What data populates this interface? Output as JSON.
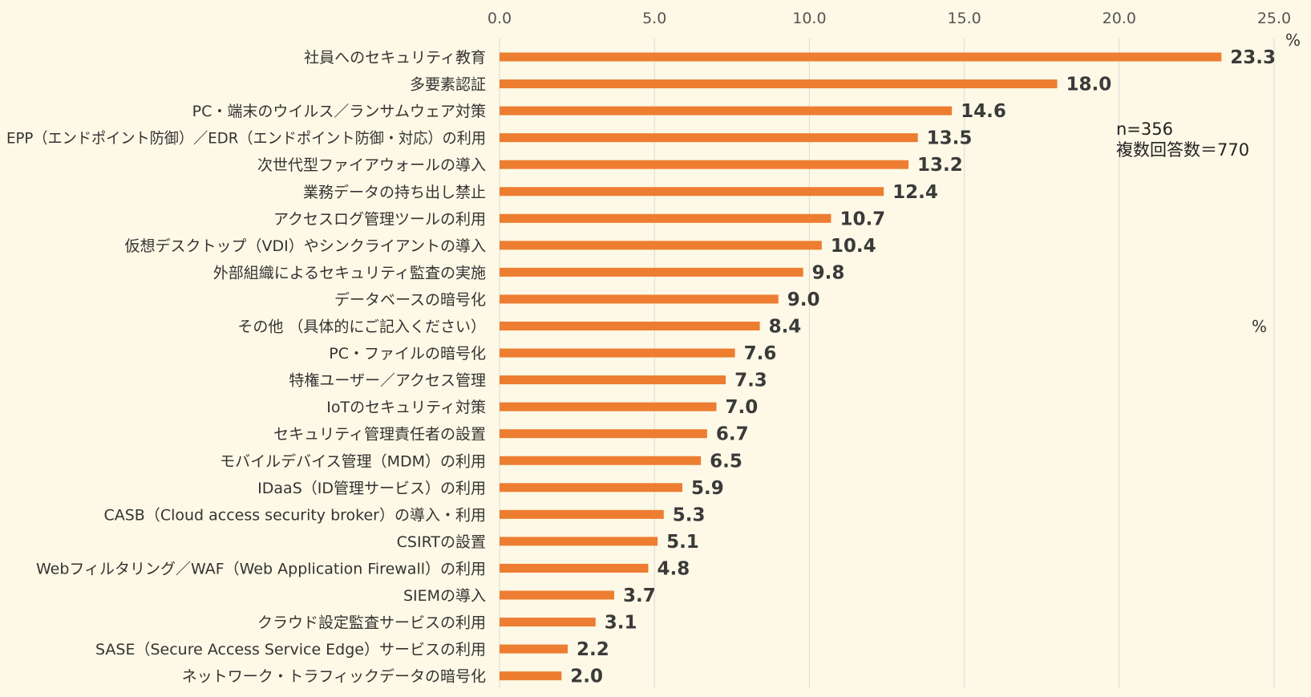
{
  "chart_data": {
    "type": "bar",
    "orientation": "horizontal",
    "categories": [
      "社員へのセキュリティ教育",
      "多要素認証",
      "PC・端末のウイルス／ランサムウェア対策",
      "EPP（エンドポイント防御）／EDR（エンドポイント防御・対応）の利用",
      "次世代型ファイアウォールの導入",
      "業務データの持ち出し禁止",
      "アクセスログ管理ツールの利用",
      "仮想デスクトップ（VDI）やシンクライアントの導入",
      "外部組織によるセキュリティ監査の実施",
      "データベースの暗号化",
      "その他 （具体的にご記入ください）",
      "PC・ファイルの暗号化",
      "特権ユーザー／アクセス管理",
      "IoTのセキュリティ対策",
      "セキュリティ管理責任者の設置",
      "モバイルデバイス管理（MDM）の利用",
      "IDaaS（ID管理サービス）の利用",
      "CASB（Cloud access security broker）の導入・利用",
      "CSIRTの設置",
      "Webフィルタリング／WAF（Web Application Firewall）の利用",
      "SIEMの導入",
      "クラウド設定監査サービスの利用",
      "SASE（Secure Access Service Edge）サービスの利用",
      "ネットワーク・トラフィックデータの暗号化"
    ],
    "values": [
      23.3,
      18.0,
      14.6,
      13.5,
      13.2,
      12.4,
      10.7,
      10.4,
      9.8,
      9.0,
      8.4,
      7.6,
      7.3,
      7.0,
      6.7,
      6.5,
      5.9,
      5.3,
      5.1,
      4.8,
      3.7,
      3.1,
      2.2,
      2.0
    ],
    "value_labels": [
      "23.3",
      "18.0",
      "14.6",
      "13.5",
      "13.2",
      "12.4",
      "10.7",
      "10.4",
      "9.8",
      "9.0",
      "8.4",
      "7.6",
      "7.3",
      "7.0",
      "6.7",
      "6.5",
      "5.9",
      "5.3",
      "5.1",
      "4.8",
      "3.7",
      "3.1",
      "2.2",
      "2.0"
    ],
    "xlim": [
      0,
      25
    ],
    "x_ticks": [
      "0.0",
      "5.0",
      "10.0",
      "15.0",
      "20.0",
      "25.0"
    ],
    "x_tick_values": [
      0,
      5,
      10,
      15,
      20,
      25
    ],
    "axis_position": "top",
    "unit": "%",
    "grid": true,
    "bar_color": "#ed7d31",
    "background_color": "#fdf9e6"
  },
  "notes": {
    "n": "n=356",
    "answers": "複数回答数＝770"
  },
  "units": {
    "top_unit": "%",
    "side_unit": "%"
  }
}
